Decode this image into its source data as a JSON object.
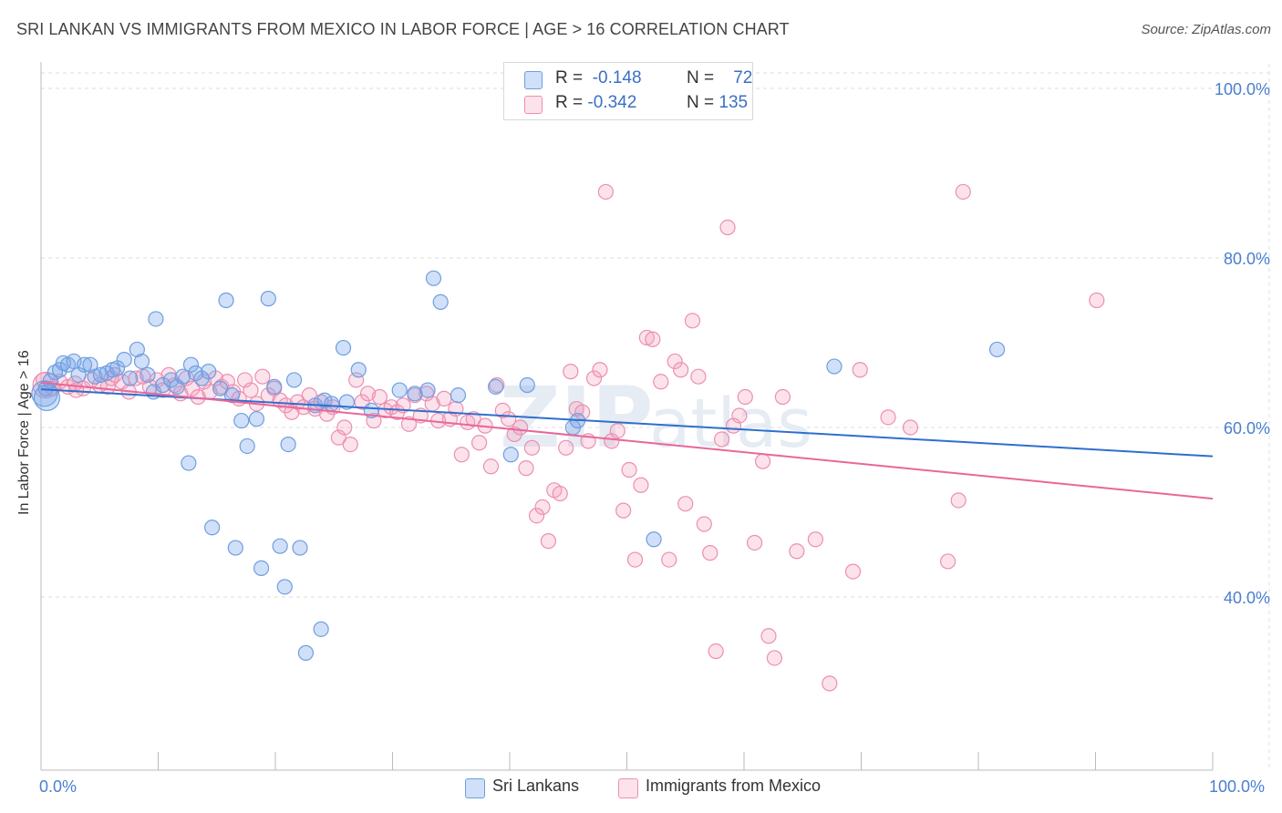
{
  "title": "SRI LANKAN VS IMMIGRANTS FROM MEXICO IN LABOR FORCE | AGE > 16 CORRELATION CHART",
  "source": "Source: ZipAtlas.com",
  "colors": {
    "sri_fill": "rgba(120,165,235,0.35)",
    "sri_stroke": "#6f9ee0",
    "sri_line": "#2f6fcd",
    "mex_fill": "rgba(245,160,190,0.30)",
    "mex_stroke": "#ec8fb0",
    "mex_line": "#e8679a",
    "axis_label": "#4a7fd0",
    "grid": "#dddddd"
  },
  "legend_top": [
    {
      "r_label": "R =",
      "r_value": "-0.148",
      "n_label": "N =",
      "n_value": "72",
      "swatch": "sri"
    },
    {
      "r_label": "R =",
      "r_value": "-0.342",
      "n_label": "N =",
      "n_value": "135",
      "swatch": "mex"
    }
  ],
  "legend_bottom": [
    {
      "label": "Sri Lankans",
      "swatch": "sri"
    },
    {
      "label": "Immigrants from Mexico",
      "swatch": "mex"
    }
  ],
  "chart_data": {
    "type": "scatter",
    "title": "SRI LANKAN VS IMMIGRANTS FROM MEXICO IN LABOR FORCE | AGE > 16 CORRELATION CHART",
    "xlabel": "",
    "ylabel": "In Labor Force | Age > 16",
    "xlim": [
      0,
      100
    ],
    "ylim": [
      20,
      100
    ],
    "x_tick_labels": [
      "0.0%",
      "100.0%"
    ],
    "y_ticks": [
      40,
      60,
      80,
      100
    ],
    "y_tick_labels": [
      "40.0%",
      "60.0%",
      "80.0%",
      "100.0%"
    ],
    "grid": true,
    "legend_position": "top-center",
    "series": [
      {
        "name": "Sri Lankans",
        "r": -0.148,
        "n": 72,
        "trend": [
          [
            0,
            64.5
          ],
          [
            100,
            56.6
          ]
        ],
        "points": [
          [
            0.3,
            64.0
          ],
          [
            0.5,
            63.5
          ],
          [
            0.8,
            65.5
          ],
          [
            1.2,
            66.5
          ],
          [
            1.6,
            66.8
          ],
          [
            1.9,
            67.6
          ],
          [
            2.3,
            67.4
          ],
          [
            2.8,
            67.8
          ],
          [
            3.2,
            66.2
          ],
          [
            3.7,
            67.4
          ],
          [
            4.2,
            67.4
          ],
          [
            4.6,
            66.0
          ],
          [
            5.1,
            66.2
          ],
          [
            5.6,
            66.4
          ],
          [
            6.1,
            66.8
          ],
          [
            6.5,
            67.0
          ],
          [
            7.1,
            68.0
          ],
          [
            7.6,
            65.8
          ],
          [
            8.2,
            69.2
          ],
          [
            8.6,
            67.8
          ],
          [
            9.1,
            66.2
          ],
          [
            9.6,
            64.2
          ],
          [
            9.8,
            72.8
          ],
          [
            10.4,
            65.0
          ],
          [
            11.1,
            65.6
          ],
          [
            11.6,
            64.8
          ],
          [
            12.1,
            66.0
          ],
          [
            12.6,
            55.8
          ],
          [
            12.8,
            67.4
          ],
          [
            13.2,
            66.4
          ],
          [
            13.7,
            65.8
          ],
          [
            14.3,
            66.6
          ],
          [
            14.6,
            48.2
          ],
          [
            15.3,
            64.6
          ],
          [
            15.8,
            75.0
          ],
          [
            16.3,
            63.8
          ],
          [
            16.6,
            45.8
          ],
          [
            17.1,
            60.8
          ],
          [
            17.6,
            57.8
          ],
          [
            18.4,
            61.0
          ],
          [
            18.8,
            43.4
          ],
          [
            19.4,
            75.2
          ],
          [
            19.9,
            64.8
          ],
          [
            20.4,
            46.0
          ],
          [
            20.8,
            41.2
          ],
          [
            21.1,
            58.0
          ],
          [
            21.6,
            65.6
          ],
          [
            22.1,
            45.8
          ],
          [
            22.6,
            33.4
          ],
          [
            23.4,
            62.6
          ],
          [
            23.9,
            36.2
          ],
          [
            24.2,
            63.2
          ],
          [
            24.8,
            62.8
          ],
          [
            25.8,
            69.4
          ],
          [
            26.1,
            63.0
          ],
          [
            27.1,
            66.8
          ],
          [
            28.2,
            62.0
          ],
          [
            30.6,
            64.4
          ],
          [
            31.9,
            64.0
          ],
          [
            33.0,
            64.4
          ],
          [
            33.5,
            77.6
          ],
          [
            34.1,
            74.8
          ],
          [
            35.6,
            63.8
          ],
          [
            38.8,
            64.8
          ],
          [
            40.1,
            56.8
          ],
          [
            41.5,
            65.0
          ],
          [
            45.4,
            60.0
          ],
          [
            45.8,
            60.8
          ],
          [
            52.3,
            46.8
          ],
          [
            67.7,
            67.2
          ],
          [
            81.6,
            69.2
          ],
          [
            0.4,
            64.6
          ]
        ]
      },
      {
        "name": "Immigrants from Mexico",
        "r": -0.342,
        "n": 135,
        "trend": [
          [
            0,
            65.3
          ],
          [
            100,
            51.6
          ]
        ],
        "points": [
          [
            0.4,
            65.0
          ],
          [
            1.0,
            64.6
          ],
          [
            1.6,
            65.4
          ],
          [
            2.3,
            64.8
          ],
          [
            2.9,
            65.2
          ],
          [
            3.6,
            64.6
          ],
          [
            4.3,
            65.6
          ],
          [
            5.0,
            65.0
          ],
          [
            5.7,
            64.8
          ],
          [
            6.3,
            66.2
          ],
          [
            6.9,
            65.4
          ],
          [
            7.5,
            64.2
          ],
          [
            8.1,
            65.8
          ],
          [
            8.7,
            66.0
          ],
          [
            9.3,
            64.8
          ],
          [
            9.9,
            65.6
          ],
          [
            10.4,
            64.4
          ],
          [
            10.9,
            66.2
          ],
          [
            11.4,
            65.0
          ],
          [
            11.9,
            64.0
          ],
          [
            12.4,
            65.8
          ],
          [
            12.9,
            64.6
          ],
          [
            13.4,
            63.6
          ],
          [
            13.9,
            65.4
          ],
          [
            14.4,
            64.2
          ],
          [
            14.9,
            65.8
          ],
          [
            15.4,
            64.8
          ],
          [
            15.9,
            65.4
          ],
          [
            16.4,
            64.2
          ],
          [
            16.9,
            63.4
          ],
          [
            17.4,
            65.6
          ],
          [
            17.9,
            64.4
          ],
          [
            18.4,
            62.8
          ],
          [
            18.9,
            66.0
          ],
          [
            19.4,
            63.8
          ],
          [
            19.9,
            64.6
          ],
          [
            20.4,
            63.2
          ],
          [
            20.9,
            62.6
          ],
          [
            21.4,
            61.8
          ],
          [
            21.9,
            63.0
          ],
          [
            22.4,
            62.4
          ],
          [
            22.9,
            63.8
          ],
          [
            23.4,
            62.2
          ],
          [
            23.9,
            63.0
          ],
          [
            24.4,
            61.6
          ],
          [
            24.9,
            62.4
          ],
          [
            25.4,
            58.8
          ],
          [
            25.9,
            60.0
          ],
          [
            26.4,
            58.0
          ],
          [
            26.9,
            65.6
          ],
          [
            27.4,
            63.0
          ],
          [
            27.9,
            64.0
          ],
          [
            28.4,
            60.8
          ],
          [
            28.9,
            63.6
          ],
          [
            29.4,
            62.0
          ],
          [
            29.9,
            62.4
          ],
          [
            30.4,
            61.8
          ],
          [
            30.9,
            62.6
          ],
          [
            31.4,
            60.4
          ],
          [
            31.9,
            63.8
          ],
          [
            32.4,
            61.4
          ],
          [
            32.9,
            64.0
          ],
          [
            33.4,
            62.8
          ],
          [
            33.9,
            60.8
          ],
          [
            34.4,
            63.4
          ],
          [
            34.9,
            61.0
          ],
          [
            35.4,
            62.2
          ],
          [
            35.9,
            56.8
          ],
          [
            36.4,
            60.6
          ],
          [
            36.9,
            61.0
          ],
          [
            37.4,
            58.2
          ],
          [
            37.9,
            60.2
          ],
          [
            38.4,
            55.4
          ],
          [
            38.9,
            65.0
          ],
          [
            39.4,
            62.0
          ],
          [
            39.9,
            61.0
          ],
          [
            40.4,
            59.2
          ],
          [
            40.9,
            60.0
          ],
          [
            41.4,
            55.2
          ],
          [
            41.9,
            57.6
          ],
          [
            42.3,
            49.6
          ],
          [
            42.8,
            50.6
          ],
          [
            43.3,
            46.6
          ],
          [
            43.8,
            52.6
          ],
          [
            44.3,
            52.2
          ],
          [
            44.8,
            57.6
          ],
          [
            45.2,
            66.6
          ],
          [
            45.7,
            62.2
          ],
          [
            46.2,
            61.8
          ],
          [
            46.7,
            58.4
          ],
          [
            47.2,
            65.8
          ],
          [
            47.7,
            66.8
          ],
          [
            48.2,
            87.8
          ],
          [
            48.7,
            58.4
          ],
          [
            49.2,
            59.6
          ],
          [
            49.7,
            50.2
          ],
          [
            50.2,
            55.0
          ],
          [
            50.7,
            44.4
          ],
          [
            51.2,
            53.2
          ],
          [
            51.7,
            70.6
          ],
          [
            52.2,
            70.4
          ],
          [
            52.9,
            65.4
          ],
          [
            53.6,
            44.4
          ],
          [
            54.1,
            67.8
          ],
          [
            54.6,
            66.8
          ],
          [
            55.0,
            51.0
          ],
          [
            55.6,
            72.6
          ],
          [
            56.1,
            66.0
          ],
          [
            56.6,
            48.6
          ],
          [
            57.1,
            45.2
          ],
          [
            57.6,
            33.6
          ],
          [
            58.1,
            58.6
          ],
          [
            58.6,
            83.6
          ],
          [
            59.1,
            60.2
          ],
          [
            59.6,
            61.4
          ],
          [
            60.1,
            63.6
          ],
          [
            60.9,
            46.4
          ],
          [
            61.6,
            56.0
          ],
          [
            62.1,
            35.4
          ],
          [
            62.6,
            32.8
          ],
          [
            63.3,
            63.6
          ],
          [
            64.5,
            45.4
          ],
          [
            66.1,
            46.8
          ],
          [
            67.3,
            29.8
          ],
          [
            69.3,
            43.0
          ],
          [
            69.9,
            66.8
          ],
          [
            72.3,
            61.2
          ],
          [
            74.2,
            60.0
          ],
          [
            77.4,
            44.2
          ],
          [
            78.3,
            51.4
          ],
          [
            78.7,
            87.8
          ],
          [
            90.1,
            75.0
          ],
          [
            0.2,
            65.6
          ],
          [
            3.0,
            64.4
          ],
          [
            6.0,
            65.8
          ]
        ]
      }
    ]
  }
}
